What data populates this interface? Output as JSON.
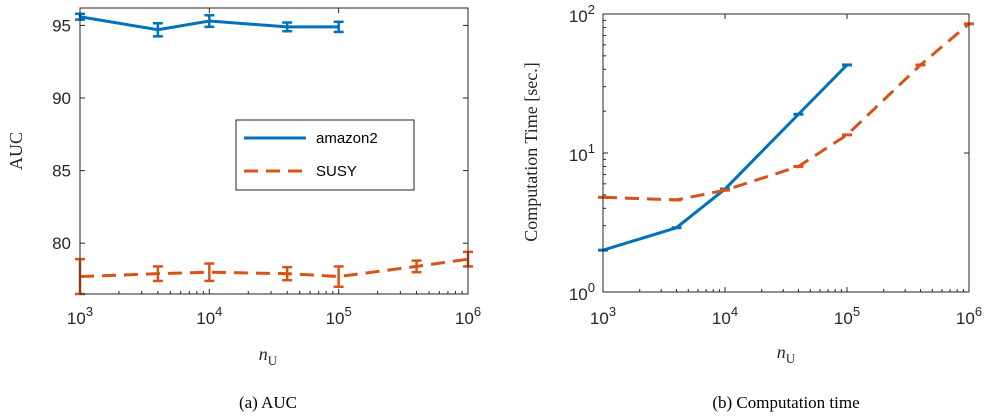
{
  "colors": {
    "amazon2": "#0072BD",
    "SUSY": "#D95319"
  },
  "chart_data": [
    {
      "type": "line",
      "caption": "(a)  AUC",
      "xlabel": "n",
      "xlabel_sub": "U",
      "ylabel": "AUC",
      "xscale": "log",
      "xlim": [
        1000,
        1000000
      ],
      "ylim": [
        76.5,
        96.2
      ],
      "xticks": [
        {
          "v": 1000,
          "b": "10",
          "e": "3"
        },
        {
          "v": 10000,
          "b": "10",
          "e": "4"
        },
        {
          "v": 100000,
          "b": "10",
          "e": "5"
        },
        {
          "v": 1000000,
          "b": "10",
          "e": "6"
        }
      ],
      "yticks": [
        "95",
        "90",
        "85",
        "80"
      ],
      "ytick_values": [
        95,
        90,
        85,
        80
      ],
      "legend": {
        "position": "center-right",
        "entries": [
          "amazon2",
          "SUSY"
        ]
      },
      "series": [
        {
          "name": "amazon2",
          "style": "solid",
          "x": [
            1000,
            4000,
            10000,
            40000,
            100000
          ],
          "y": [
            95.6,
            94.7,
            95.3,
            94.9,
            94.9
          ],
          "err": [
            0.2,
            0.45,
            0.4,
            0.3,
            0.35
          ]
        },
        {
          "name": "SUSY",
          "style": "dashed",
          "x": [
            1000,
            4000,
            10000,
            40000,
            100000,
            400000,
            1000000
          ],
          "y": [
            77.7,
            77.9,
            78.0,
            77.9,
            77.7,
            78.4,
            78.9
          ],
          "err": [
            1.2,
            0.5,
            0.6,
            0.45,
            0.7,
            0.4,
            0.5
          ]
        }
      ]
    },
    {
      "type": "line",
      "caption": "(b)  Computation time",
      "xlabel": "n",
      "xlabel_sub": "U",
      "ylabel": "Computation  Time  [sec.]",
      "xscale": "log",
      "yscale": "log",
      "xlim": [
        1000,
        1000000
      ],
      "ylim": [
        1,
        100
      ],
      "xticks": [
        {
          "v": 1000,
          "b": "10",
          "e": "3"
        },
        {
          "v": 10000,
          "b": "10",
          "e": "4"
        },
        {
          "v": 100000,
          "b": "10",
          "e": "5"
        },
        {
          "v": 1000000,
          "b": "10",
          "e": "6"
        }
      ],
      "yticks": [
        {
          "v": 1,
          "b": "10",
          "e": "0"
        },
        {
          "v": 10,
          "b": "10",
          "e": "1"
        },
        {
          "v": 100,
          "b": "10",
          "e": "2"
        }
      ],
      "series": [
        {
          "name": "amazon2",
          "style": "solid",
          "x": [
            1000,
            4000,
            10000,
            40000,
            100000
          ],
          "y": [
            2.0,
            2.9,
            5.5,
            19.0,
            43.0
          ]
        },
        {
          "name": "SUSY",
          "style": "dashed",
          "x": [
            1000,
            4000,
            10000,
            40000,
            100000,
            400000,
            1000000
          ],
          "y": [
            4.8,
            4.6,
            5.4,
            8.0,
            13.5,
            43.0,
            85.0
          ]
        }
      ]
    }
  ]
}
